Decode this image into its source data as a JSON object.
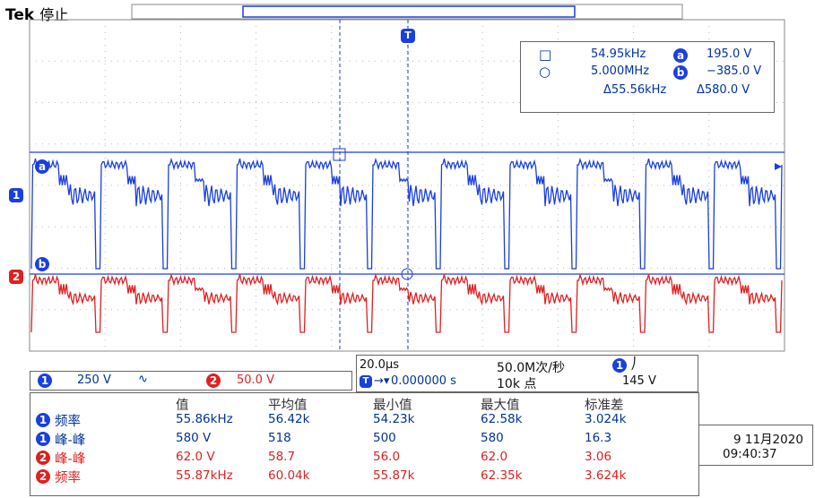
{
  "status": {
    "brand": "Tek",
    "state": "停止"
  },
  "cursor": {
    "row1": {
      "left": "54.95kHz",
      "badge": "a",
      "right": "195.0 V"
    },
    "row2": {
      "left": "5.000MHz",
      "badge": "b",
      "right": "−385.0 V"
    },
    "row3": {
      "left": "Δ55.56kHz",
      "right": "Δ580.0 V"
    }
  },
  "markers": {
    "cursor_a": "a",
    "cursor_b": "b",
    "ch1": "1",
    "ch2": "2",
    "trigger": "T"
  },
  "channels": {
    "ch1": {
      "num": "1",
      "scale": "250 V",
      "coupling": "∿",
      "color": "#1a3fe0"
    },
    "ch2": {
      "num": "2",
      "scale": "50.0 V",
      "color": "#e02020"
    }
  },
  "timebase": {
    "per_div": "20.0µs",
    "rate": "50.0M次/秒",
    "ch": "1",
    "slope": "⎠",
    "position": "0.000000 s",
    "record": "10k 点",
    "trigger_level": "145 V"
  },
  "measurements": {
    "headers": [
      "值",
      "平均值",
      "最小值",
      "最大值",
      "标准差"
    ],
    "rows": [
      {
        "ch": "1",
        "name": "频率",
        "value": "55.86kHz",
        "mean": "56.42k",
        "min": "54.23k",
        "max": "62.58k",
        "std": "3.024k"
      },
      {
        "ch": "1",
        "name": "峰-峰",
        "value": "580 V",
        "mean": "518",
        "min": "500",
        "max": "580",
        "std": "16.3"
      },
      {
        "ch": "2",
        "name": "峰-峰",
        "value": "62.0 V",
        "mean": "58.7",
        "min": "56.0",
        "max": "62.0",
        "std": "3.06"
      },
      {
        "ch": "2",
        "name": "频率",
        "value": "55.87kHz",
        "mean": "60.04k",
        "min": "55.87k",
        "max": "62.35k",
        "std": "3.624k"
      }
    ]
  },
  "datetime": {
    "date": "9 11月2020",
    "time": "09:40:37"
  }
}
